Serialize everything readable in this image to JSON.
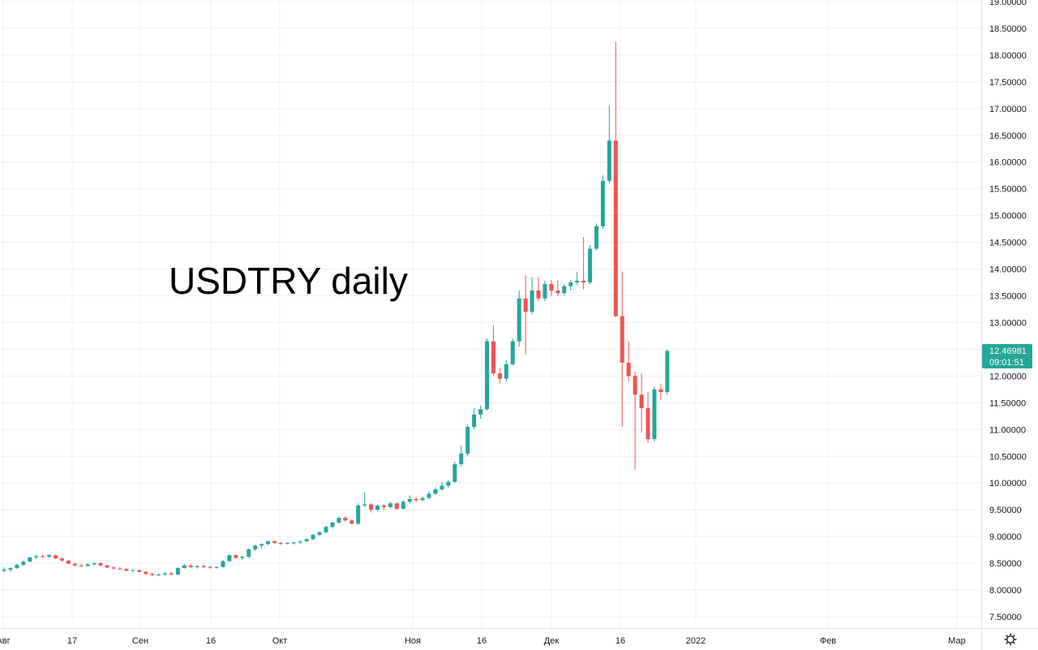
{
  "colors": {
    "up": "#26a69a",
    "down": "#ef5350",
    "grid": "#eef0f3",
    "axis_text": "#131722",
    "border": "#e0e3eb"
  },
  "icons": {
    "settings": "gear-icon"
  },
  "chart_data": {
    "type": "candlestick",
    "title": "USDTRY daily",
    "ylim": [
      7.33,
      19.1
    ],
    "y_ticks": [
      "19.00000",
      "18.50000",
      "18.00000",
      "17.50000",
      "17.00000",
      "16.50000",
      "16.00000",
      "15.50000",
      "15.00000",
      "14.50000",
      "14.00000",
      "13.50000",
      "13.00000",
      "12.50000",
      "12.00000",
      "11.50000",
      "11.00000",
      "10.50000",
      "10.00000",
      "9.50000",
      "9.00000",
      "8.50000",
      "8.00000",
      "7.50000"
    ],
    "x_ticks": [
      "Авг",
      "17",
      "Сен",
      "16",
      "Окт",
      "Ноя",
      "16",
      "Дек",
      "16",
      "2022",
      "Фев",
      "Мар"
    ],
    "last_price": "12.46981",
    "countdown": "09:01:51",
    "grid": true,
    "candles": [
      [
        8.36,
        8.42,
        8.33,
        8.38
      ],
      [
        8.38,
        8.43,
        8.34,
        8.41
      ],
      [
        8.41,
        8.49,
        8.39,
        8.47
      ],
      [
        8.47,
        8.55,
        8.45,
        8.53
      ],
      [
        8.53,
        8.62,
        8.52,
        8.61
      ],
      [
        8.61,
        8.66,
        8.58,
        8.63
      ],
      [
        8.63,
        8.66,
        8.6,
        8.62
      ],
      [
        8.62,
        8.67,
        8.6,
        8.65
      ],
      [
        8.65,
        8.66,
        8.58,
        8.59
      ],
      [
        8.59,
        8.61,
        8.53,
        8.55
      ],
      [
        8.55,
        8.56,
        8.48,
        8.49
      ],
      [
        8.49,
        8.51,
        8.44,
        8.46
      ],
      [
        8.46,
        8.49,
        8.43,
        8.45
      ],
      [
        8.45,
        8.5,
        8.44,
        8.48
      ],
      [
        8.48,
        8.52,
        8.46,
        8.5
      ],
      [
        8.5,
        8.52,
        8.44,
        8.46
      ],
      [
        8.46,
        8.48,
        8.41,
        8.42
      ],
      [
        8.42,
        8.44,
        8.38,
        8.4
      ],
      [
        8.4,
        8.43,
        8.37,
        8.39
      ],
      [
        8.39,
        8.41,
        8.35,
        8.36
      ],
      [
        8.36,
        8.39,
        8.34,
        8.37
      ],
      [
        8.37,
        8.38,
        8.32,
        8.34
      ],
      [
        8.34,
        8.36,
        8.28,
        8.3
      ],
      [
        8.3,
        8.33,
        8.26,
        8.28
      ],
      [
        8.28,
        8.31,
        8.26,
        8.29
      ],
      [
        8.29,
        8.33,
        8.27,
        8.31
      ],
      [
        8.31,
        8.34,
        8.28,
        8.29
      ],
      [
        8.29,
        8.43,
        8.28,
        8.41
      ],
      [
        8.41,
        8.49,
        8.4,
        8.46
      ],
      [
        8.46,
        8.49,
        8.41,
        8.43
      ],
      [
        8.43,
        8.46,
        8.4,
        8.45
      ],
      [
        8.45,
        8.47,
        8.41,
        8.43
      ],
      [
        8.43,
        8.45,
        8.4,
        8.42
      ],
      [
        8.42,
        8.44,
        8.4,
        8.43
      ],
      [
        8.43,
        8.56,
        8.42,
        8.54
      ],
      [
        8.54,
        8.67,
        8.52,
        8.65
      ],
      [
        8.65,
        8.67,
        8.58,
        8.6
      ],
      [
        8.6,
        8.64,
        8.56,
        8.62
      ],
      [
        8.62,
        8.78,
        8.6,
        8.76
      ],
      [
        8.76,
        8.85,
        8.73,
        8.83
      ],
      [
        8.83,
        8.87,
        8.78,
        8.86
      ],
      [
        8.86,
        8.92,
        8.84,
        8.91
      ],
      [
        8.91,
        8.93,
        8.86,
        8.88
      ],
      [
        8.88,
        8.9,
        8.84,
        8.87
      ],
      [
        8.87,
        8.89,
        8.85,
        8.88
      ],
      [
        8.88,
        8.9,
        8.85,
        8.89
      ],
      [
        8.89,
        8.92,
        8.86,
        8.91
      ],
      [
        8.91,
        8.97,
        8.9,
        8.95
      ],
      [
        8.95,
        9.05,
        8.93,
        9.03
      ],
      [
        9.03,
        9.1,
        9.01,
        9.08
      ],
      [
        9.08,
        9.2,
        9.06,
        9.18
      ],
      [
        9.18,
        9.28,
        9.15,
        9.26
      ],
      [
        9.26,
        9.37,
        9.24,
        9.35
      ],
      [
        9.35,
        9.38,
        9.28,
        9.3
      ],
      [
        9.3,
        9.32,
        9.22,
        9.24
      ],
      [
        9.24,
        9.62,
        9.22,
        9.58
      ],
      [
        9.58,
        9.83,
        9.55,
        9.6
      ],
      [
        9.6,
        9.62,
        9.45,
        9.5
      ],
      [
        9.5,
        9.6,
        9.47,
        9.58
      ],
      [
        9.58,
        9.6,
        9.5,
        9.55
      ],
      [
        9.55,
        9.65,
        9.52,
        9.62
      ],
      [
        9.62,
        9.64,
        9.5,
        9.52
      ],
      [
        9.52,
        9.68,
        9.5,
        9.65
      ],
      [
        9.65,
        9.77,
        9.62,
        9.7
      ],
      [
        9.7,
        9.74,
        9.65,
        9.68
      ],
      [
        9.68,
        9.75,
        9.66,
        9.72
      ],
      [
        9.72,
        9.85,
        9.7,
        9.8
      ],
      [
        9.8,
        9.92,
        9.78,
        9.88
      ],
      [
        9.88,
        10.02,
        9.85,
        9.95
      ],
      [
        9.95,
        10.05,
        9.92,
        10.02
      ],
      [
        10.02,
        10.4,
        10.0,
        10.35
      ],
      [
        10.35,
        10.7,
        10.3,
        10.55
      ],
      [
        10.55,
        11.1,
        10.5,
        11.05
      ],
      [
        11.05,
        11.4,
        11.0,
        11.28
      ],
      [
        11.28,
        11.45,
        11.2,
        11.38
      ],
      [
        11.38,
        12.7,
        11.35,
        12.65
      ],
      [
        12.65,
        12.95,
        12.0,
        12.05
      ],
      [
        12.05,
        12.15,
        11.85,
        11.95
      ],
      [
        11.95,
        12.3,
        11.9,
        12.22
      ],
      [
        12.22,
        12.7,
        12.2,
        12.65
      ],
      [
        12.65,
        13.6,
        12.55,
        13.45
      ],
      [
        13.45,
        13.88,
        12.4,
        13.2
      ],
      [
        13.2,
        13.85,
        13.15,
        13.6
      ],
      [
        13.6,
        13.85,
        13.4,
        13.45
      ],
      [
        13.45,
        13.78,
        13.4,
        13.72
      ],
      [
        13.72,
        13.8,
        13.5,
        13.6
      ],
      [
        13.6,
        13.78,
        13.5,
        13.55
      ],
      [
        13.55,
        13.72,
        13.5,
        13.68
      ],
      [
        13.68,
        13.8,
        13.6,
        13.75
      ],
      [
        13.75,
        13.95,
        13.7,
        13.78
      ],
      [
        13.78,
        14.6,
        13.62,
        13.75
      ],
      [
        13.75,
        14.45,
        13.72,
        14.38
      ],
      [
        14.38,
        14.85,
        14.35,
        14.8
      ],
      [
        14.8,
        15.75,
        14.75,
        15.65
      ],
      [
        15.65,
        17.05,
        15.6,
        16.4
      ],
      [
        16.4,
        18.25,
        13.1,
        13.12
      ],
      [
        13.12,
        13.95,
        11.05,
        12.25
      ],
      [
        12.25,
        12.65,
        11.9,
        12.0
      ],
      [
        12.0,
        12.08,
        10.25,
        11.65
      ],
      [
        11.65,
        12.05,
        10.95,
        11.4
      ],
      [
        11.4,
        11.7,
        10.75,
        10.82
      ],
      [
        10.82,
        11.8,
        10.78,
        11.75
      ],
      [
        11.75,
        11.85,
        11.55,
        11.7
      ],
      [
        11.7,
        12.5,
        11.65,
        12.47
      ]
    ]
  }
}
